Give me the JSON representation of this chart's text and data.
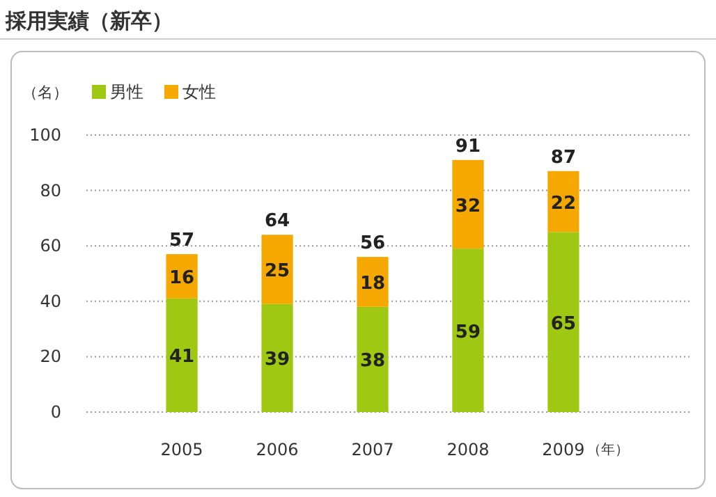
{
  "chart_data": {
    "type": "bar",
    "title": "採用実績（新卒）",
    "ylabel": "（名）",
    "xlabel": "（年）",
    "categories": [
      "2005",
      "2006",
      "2007",
      "2008",
      "2009"
    ],
    "series": [
      {
        "name": "男性",
        "color": "#9fc813",
        "values": [
          41,
          39,
          38,
          59,
          65
        ]
      },
      {
        "name": "女性",
        "color": "#f5a800",
        "values": [
          16,
          25,
          18,
          32,
          22
        ]
      }
    ],
    "stacked": true,
    "data_labels": true,
    "totals": [
      "57",
      "64",
      "56",
      "91",
      "87"
    ],
    "ylim": [
      0,
      100
    ],
    "yticks": [
      0,
      20,
      40,
      60,
      80,
      100
    ],
    "grid": "y",
    "legend": "top left"
  }
}
